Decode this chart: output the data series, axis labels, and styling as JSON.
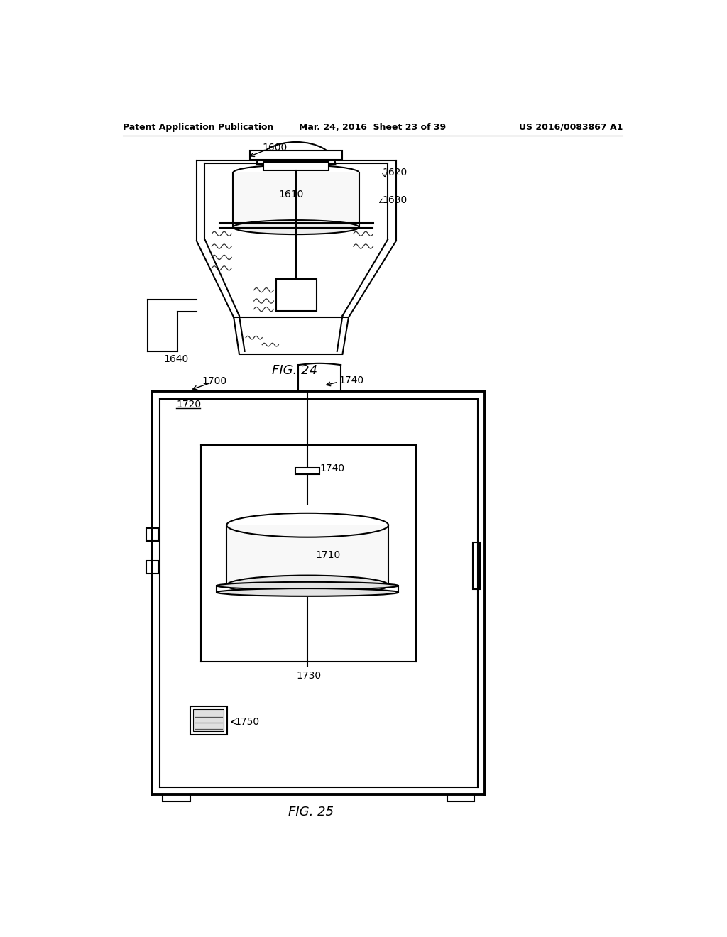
{
  "header_left": "Patent Application Publication",
  "header_mid": "Mar. 24, 2016  Sheet 23 of 39",
  "header_right": "US 2016/0083867 A1",
  "fig24_label": "FIG. 24",
  "fig25_label": "FIG. 25",
  "bg_color": "#ffffff",
  "line_color": "#000000"
}
